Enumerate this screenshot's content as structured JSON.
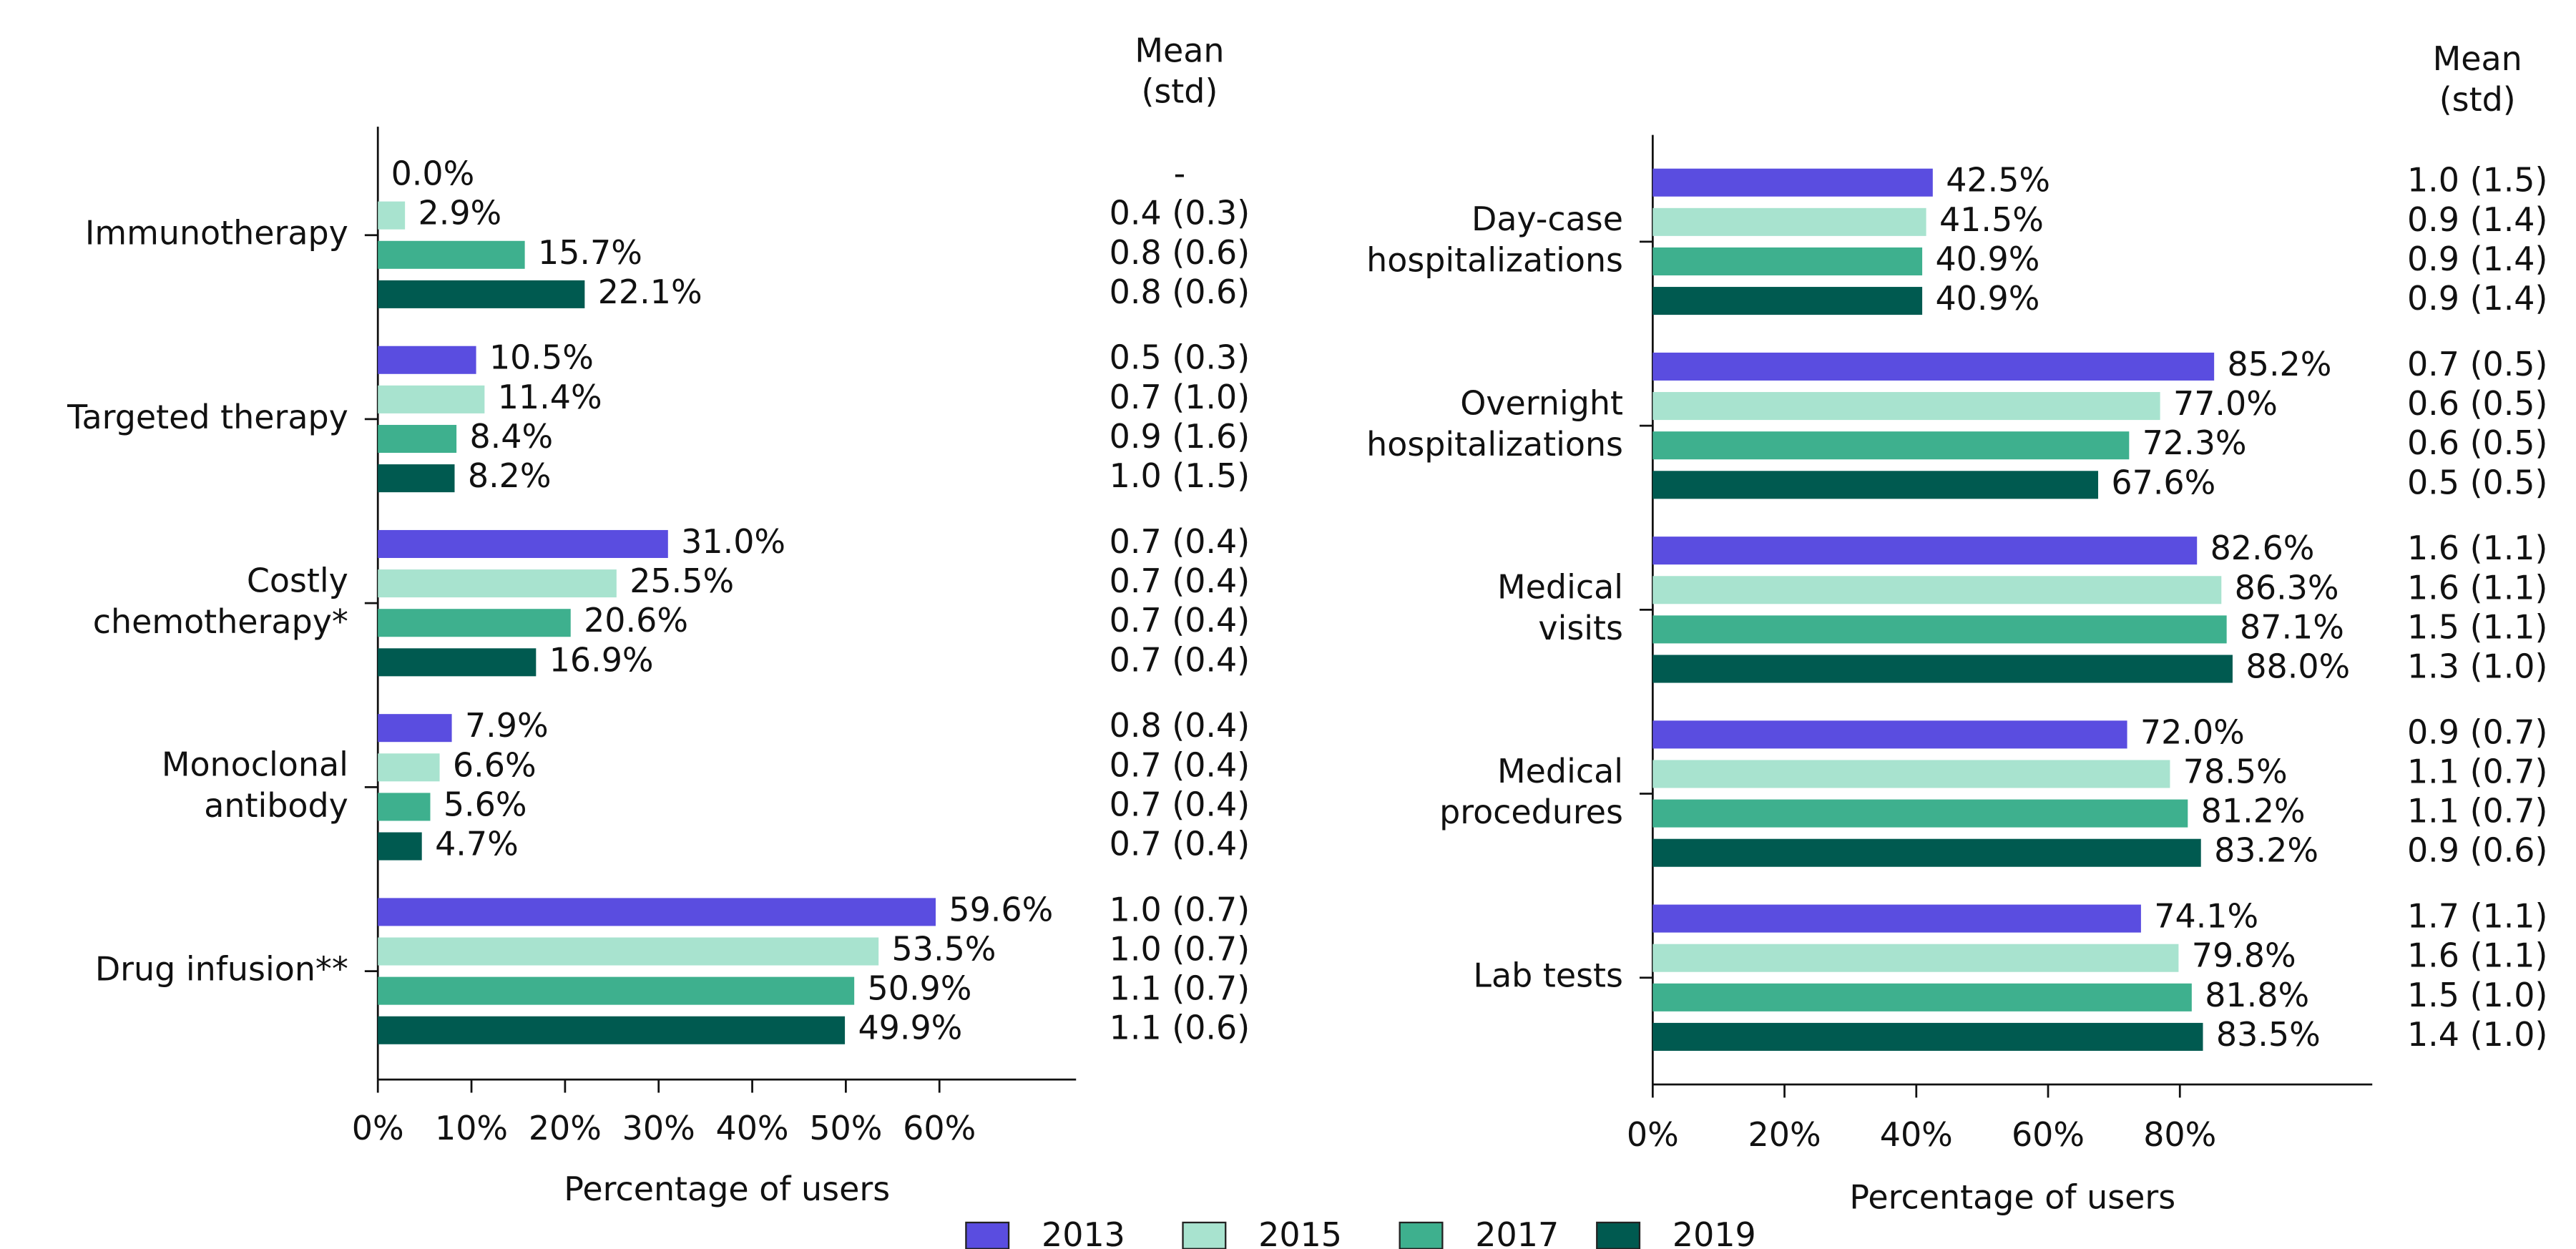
{
  "chart_data": [
    {
      "type": "bar",
      "orientation": "horizontal",
      "xlabel": "Percentage of users",
      "stat_header": [
        "Mean",
        "(std)"
      ],
      "categories": [
        "Immunotherapy",
        "Targeted therapy",
        "Costly\nchemotherapy*",
        "Monoclonal\nantibody",
        "Drug infusion**"
      ],
      "xlim": [
        0,
        74.6
      ],
      "xticks": [
        {
          "value": 0,
          "label": "0%"
        },
        {
          "value": 10,
          "label": "10%"
        },
        {
          "value": 20,
          "label": "20%"
        },
        {
          "value": 30,
          "label": "30%"
        },
        {
          "value": 40,
          "label": "40%"
        },
        {
          "value": 50,
          "label": "50%"
        },
        {
          "value": 60,
          "label": "60%"
        }
      ],
      "series": [
        {
          "name": "2013",
          "color": "#5a4de0",
          "values": [
            0.0,
            10.5,
            31.0,
            7.9,
            59.6
          ],
          "value_labels": [
            "0.0%",
            "10.5%",
            "31.0%",
            "7.9%",
            "59.6%"
          ],
          "mean_std": [
            "-",
            "0.5 (0.3)",
            "0.7 (0.4)",
            "0.8 (0.4)",
            "1.0 (0.7)"
          ]
        },
        {
          "name": "2015",
          "color": "#a8e3cf",
          "values": [
            2.9,
            11.4,
            25.5,
            6.6,
            53.5
          ],
          "value_labels": [
            "2.9%",
            "11.4%",
            "25.5%",
            "6.6%",
            "53.5%"
          ],
          "mean_std": [
            "0.4 (0.3)",
            "0.7 (1.0)",
            "0.7 (0.4)",
            "0.7 (0.4)",
            "1.0 (0.7)"
          ]
        },
        {
          "name": "2017",
          "color": "#3eb08e",
          "values": [
            15.7,
            8.4,
            20.6,
            5.6,
            50.9
          ],
          "value_labels": [
            "15.7%",
            "8.4%",
            "20.6%",
            "5.6%",
            "50.9%"
          ],
          "mean_std": [
            "0.8 (0.6)",
            "0.9 (1.6)",
            "0.7 (0.4)",
            "0.7 (0.4)",
            "1.1 (0.7)"
          ]
        },
        {
          "name": "2019",
          "color": "#005a50",
          "values": [
            22.1,
            8.2,
            16.9,
            4.7,
            49.9
          ],
          "value_labels": [
            "22.1%",
            "8.2%",
            "16.9%",
            "4.7%",
            "49.9%"
          ],
          "mean_std": [
            "0.8 (0.6)",
            "1.0 (1.5)",
            "0.7 (0.4)",
            "0.7 (0.4)",
            "1.1 (0.6)"
          ]
        }
      ]
    },
    {
      "type": "bar",
      "orientation": "horizontal",
      "xlabel": "Percentage of users",
      "stat_header": [
        "Mean",
        "(std)"
      ],
      "categories": [
        "Day-case\nhospitalizations",
        "Overnight\nhospitalizations",
        "Medical\nvisits",
        "Medical\nprocedures",
        "Lab tests"
      ],
      "xlim": [
        0,
        109.2
      ],
      "xticks": [
        {
          "value": 0,
          "label": "0%"
        },
        {
          "value": 20,
          "label": "20%"
        },
        {
          "value": 40,
          "label": "40%"
        },
        {
          "value": 60,
          "label": "60%"
        },
        {
          "value": 80,
          "label": "80%"
        }
      ],
      "series": [
        {
          "color": "#5a4de0",
          "values": [
            42.5,
            85.2,
            82.6,
            72.0,
            74.1
          ],
          "value_labels": [
            "42.5%",
            "85.2%",
            "82.6%",
            "72.0%",
            "74.1%"
          ],
          "mean_std": [
            "1.0 (1.5)",
            "0.7 (0.5)",
            "1.6 (1.1)",
            "0.9 (0.7)",
            "1.7 (1.1)"
          ]
        },
        {
          "color": "#a8e3cf",
          "values": [
            41.5,
            77.0,
            86.3,
            78.5,
            79.8
          ],
          "value_labels": [
            "41.5%",
            "77.0%",
            "86.3%",
            "78.5%",
            "79.8%"
          ],
          "mean_std": [
            "0.9 (1.4)",
            "0.6 (0.5)",
            "1.6 (1.1)",
            "1.1 (0.7)",
            "1.6 (1.1)"
          ]
        },
        {
          "color": "#3eb08e",
          "values": [
            40.9,
            72.3,
            87.1,
            81.2,
            81.8
          ],
          "value_labels": [
            "40.9%",
            "72.3%",
            "87.1%",
            "81.2%",
            "81.8%"
          ],
          "mean_std": [
            "0.9 (1.4)",
            "0.6 (0.5)",
            "1.5 (1.1)",
            "1.1 (0.7)",
            "1.5 (1.0)"
          ]
        },
        {
          "color": "#005a50",
          "values": [
            40.9,
            67.6,
            88.0,
            83.2,
            83.5
          ],
          "value_labels": [
            "40.9%",
            "67.6%",
            "88.0%",
            "83.2%",
            "83.5%"
          ],
          "mean_std": [
            "0.9 (1.4)",
            "0.5 (0.5)",
            "1.3 (1.0)",
            "0.9 (0.6)",
            "1.4 (1.0)"
          ]
        }
      ]
    }
  ]
}
